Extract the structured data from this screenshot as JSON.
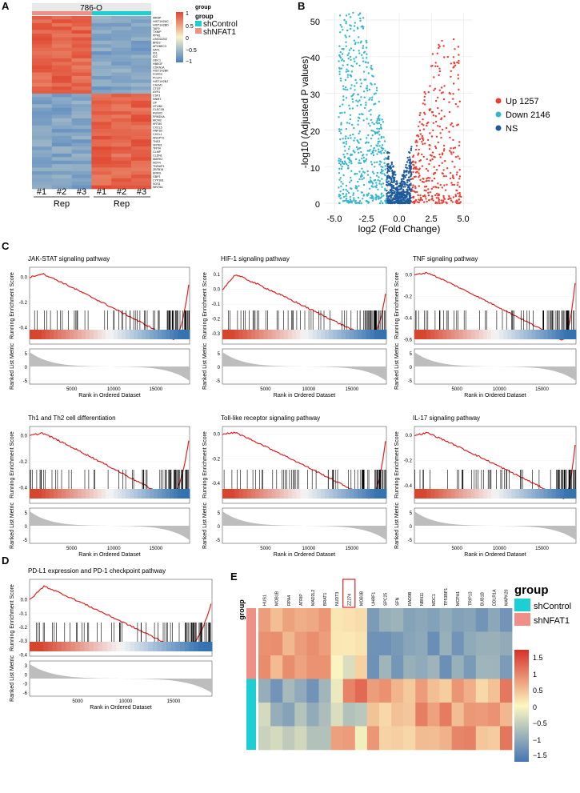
{
  "panels": {
    "A": "A",
    "B": "B",
    "C": "C",
    "D": "D",
    "E": "E"
  },
  "heatmap_a": {
    "title": "786-O",
    "genes": [
      "MRAP",
      "HIST1H2AC",
      "HIST1H2BD",
      "TAF9",
      "TXNIP",
      "PPM1",
      "LINC02202",
      "BRD2",
      "APOBEC3",
      "SAT1",
      "ID1",
      "ID2",
      "ODC1",
      "HBEGF",
      "CDKN1A",
      "HIST1H2BK",
      "FGFR3",
      "PCLP3",
      "HIST1H2BJ",
      "CALM1",
      "CTGF",
      "AYR1",
      "CSF3",
      "NNMT",
      "LIF",
      "OTUB2",
      "CLEC1B",
      "RUNX2",
      "FRMD4A",
      "MCM3",
      "KRT80",
      "CXCL5",
      "HNF1B",
      "CXCL1",
      "ANGPT2",
      "TNS3",
      "SNTB1",
      "TFPI4",
      "CLMP",
      "CLDN1",
      "MARK2",
      "NOX4",
      "TNFAIP1",
      "ZBTB16",
      "ERRG",
      "GBP1",
      "CYP1B1",
      "SOS1",
      "WNT5A"
    ],
    "col_labels": [
      "#1",
      "#2",
      "#3",
      "#1",
      "#2",
      "#3"
    ],
    "group_labels": [
      "Rep",
      "Rep"
    ],
    "legend": {
      "ticks": [
        "1",
        "0.5",
        "0",
        "−0.5",
        "−1"
      ],
      "group_title": "group",
      "groups": [
        "shControl",
        "shNFAT1"
      ]
    },
    "colors": {
      "high": "#e0452f",
      "mid": "#f7f4cc",
      "low": "#4c7fc0",
      "shControl": "#1ccfd2",
      "shNFAT1": "#f08f86"
    }
  },
  "volcano": {
    "ylabel": "-log10 (Adjusted P values)",
    "xlabel": "log2 (Fold Change)",
    "xticks": [
      "-5.0",
      "-2.5",
      "0.0",
      "2.5",
      "5.0"
    ],
    "yticks": [
      "0",
      "10",
      "20",
      "30",
      "40",
      "50"
    ],
    "legend": [
      {
        "label": "Up 1257",
        "color": "#ee3b31"
      },
      {
        "label": "Down 2146",
        "color": "#35b6cf"
      },
      {
        "label": "NS",
        "color": "#1f5b9c"
      }
    ]
  },
  "gsea_common": {
    "ylabel_top": "Running Enrichment Score",
    "ylabel_bottom": "Ranked List Metric",
    "xlabel": "Rank in Ordered Dataset",
    "xticks": [
      "5000",
      "10000",
      "15000"
    ]
  },
  "gsea_pathways": [
    {
      "title": "JAK-STAT signaling pathway",
      "yticks": [
        "0.0",
        "-0.2",
        "-0.4"
      ],
      "metric_ticks": [
        "5",
        "0",
        "-5"
      ]
    },
    {
      "title": "HIF-1 signaling pathway",
      "yticks": [
        "0.1",
        "0.0",
        "-0.1",
        "-0.2",
        "-0.3"
      ],
      "metric_ticks": [
        "5",
        "0",
        "-5"
      ]
    },
    {
      "title": "TNF signaling pathway",
      "yticks": [
        "0.0",
        "-0.2",
        "-0.4",
        "-0.6"
      ],
      "metric_ticks": [
        "5",
        "0",
        "-5"
      ]
    },
    {
      "title": "Th1 and Th2 cell differentiation",
      "yticks": [
        "0.0",
        "-0.2",
        "-0.4"
      ],
      "metric_ticks": [
        "5",
        "0",
        "-5"
      ]
    },
    {
      "title": "Toll-like receptor signaling pathway",
      "yticks": [
        "0.0",
        "-0.2",
        "-0.4"
      ],
      "metric_ticks": [
        "5",
        "0",
        "-5"
      ]
    },
    {
      "title": "IL-17 signaling pathway",
      "yticks": [
        "0.0",
        "-0.2",
        "-0.4"
      ],
      "metric_ticks": [
        "5",
        "0",
        "-5"
      ]
    },
    {
      "title": "PD-L1 expression and PD-1 checkpoint pathway",
      "yticks": [
        "0.0",
        "-0.1",
        "-0.2",
        "-0.3",
        "-0.4"
      ],
      "metric_ticks": [
        "3",
        "0",
        "-3",
        "-6"
      ]
    }
  ],
  "heatmap_e": {
    "genes": [
      "HUS1",
      "MOB1B",
      "RPA4",
      "ATRIP",
      "MAD2L2",
      "BRAT1",
      "NUDT3",
      "ZZ274",
      "MOB3B",
      "UHRF1",
      "SPC25",
      "SFN",
      "RAD9B",
      "NBN11",
      "MDC1",
      "TP53BP1",
      "MCPH1",
      "TRIP13",
      "BUB1B",
      "DDLR1A",
      "MAPK20"
    ],
    "highlighted": "ZZ274",
    "group_label": "group",
    "legend": {
      "group_title": "group",
      "groups": [
        "shControl",
        "shNFAT1"
      ],
      "ticks": [
        "1.5",
        "1",
        "0.5",
        "0",
        "−0.5",
        "−1",
        "−1.5"
      ]
    }
  },
  "chart_data": [
    {
      "type": "heatmap",
      "title": "786-O",
      "columns": [
        "#1",
        "#2",
        "#3",
        "#1",
        "#2",
        "#3"
      ],
      "groups": [
        "shNFAT1",
        "shNFAT1",
        "shNFAT1",
        "shControl",
        "shControl",
        "shControl"
      ],
      "rows": 49,
      "scale": [
        -1,
        1
      ],
      "pattern": "first 22 genes high in shNFAT1/low in shControl, remaining 27 genes low in shNFAT1/high in shControl"
    },
    {
      "type": "scatter",
      "title": "volcano",
      "xlabel": "log2 (Fold Change)",
      "ylabel": "-log10 (Adjusted P values)",
      "xlim": [
        -5.5,
        5.5
      ],
      "ylim": [
        -1,
        52
      ],
      "series": [
        {
          "name": "Up",
          "count": 1257
        },
        {
          "name": "Down",
          "count": 2146
        },
        {
          "name": "NS",
          "count": null
        }
      ]
    },
    {
      "type": "line",
      "title": "GSEA",
      "xlabel": "Rank in Ordered Dataset",
      "x_range": [
        0,
        19000
      ],
      "series": [
        {
          "name": "JAK-STAT signaling pathway",
          "min_es": -0.49,
          "min_rank": 17000,
          "max_es": 0.03
        },
        {
          "name": "HIF-1 signaling pathway",
          "min_es": -0.33,
          "min_rank": 17000,
          "max_es": 0.1
        },
        {
          "name": "TNF signaling pathway",
          "min_es": -0.6,
          "min_rank": 17300,
          "max_es": 0.02
        },
        {
          "name": "Th1 and Th2 cell differentiation",
          "min_es": -0.48,
          "min_rank": 16500,
          "max_es": 0.02
        },
        {
          "name": "Toll-like receptor signaling pathway",
          "min_es": -0.52,
          "min_rank": 17000,
          "max_es": 0.01
        },
        {
          "name": "IL-17 signaling pathway",
          "min_es": -0.5,
          "min_rank": 17500,
          "max_es": 0.02
        },
        {
          "name": "PD-L1 expression and PD-1 checkpoint pathway",
          "min_es": -0.37,
          "min_rank": 15800,
          "max_es": 0.1
        }
      ]
    },
    {
      "type": "heatmap",
      "title": "E",
      "columns": [
        "HUS1",
        "MOB1B",
        "RPA4",
        "ATRIP",
        "MAD2L2",
        "BRAT1",
        "NUDT3",
        "ZZ274",
        "MOB3B",
        "UHRF1",
        "SPC25",
        "SFN",
        "RAD9B",
        "NBN11",
        "MDC1",
        "TP53BP1",
        "MCPH1",
        "TRIP13",
        "BUB1B",
        "DDLR1A",
        "MAPK20"
      ],
      "rows": 6,
      "scale": [
        -1.5,
        1.5
      ],
      "groups": [
        "shNFAT1",
        "shNFAT1",
        "shNFAT1",
        "shControl",
        "shControl",
        "shControl"
      ]
    }
  ]
}
